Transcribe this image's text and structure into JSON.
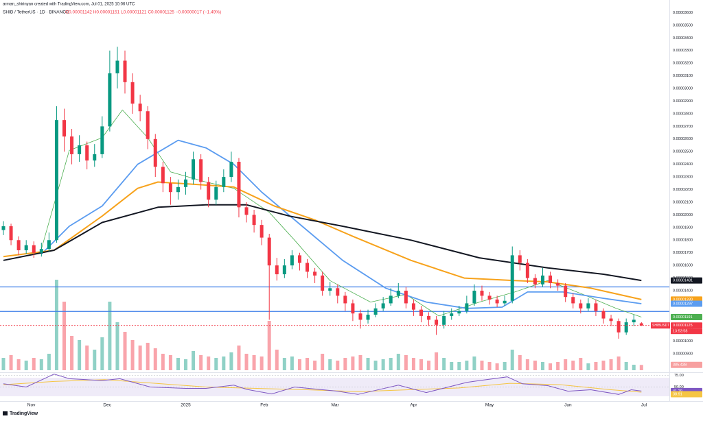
{
  "header": {
    "author_line": "arman_shirinyan created with TradingView.com, Jul 01, 2025 10:06 UTC",
    "symbol_line": "SHIB / TetherUS · 1D · BINANCE",
    "ohlc_line": "O0.00001142 H0.00001151 L0.00001121 C0.00001125 −0.00000017 (−1.49%)"
  },
  "footer": {
    "brand": "TradingView"
  },
  "chart_data": {
    "type": "candlestick",
    "xlim": [
      0,
      253
    ],
    "xticks": [
      {
        "value": 11,
        "label": "Nov"
      },
      {
        "value": 41,
        "label": "Dec"
      },
      {
        "value": 72,
        "label": "2025"
      },
      {
        "value": 103,
        "label": "Feb"
      },
      {
        "value": 131,
        "label": "Mar"
      },
      {
        "value": 162,
        "label": "Apr"
      },
      {
        "value": 192,
        "label": "May"
      },
      {
        "value": 223,
        "label": "Jun"
      },
      {
        "value": 253,
        "label": "Jul"
      }
    ],
    "ylim": [
      7.6e-06,
      3.7e-05
    ],
    "yticks": [
      {
        "value": 9e-06,
        "label": "0.00000900"
      },
      {
        "value": 1e-05,
        "label": "0.00001000"
      },
      {
        "value": 1.1e-05,
        "label": "0.00001100"
      },
      {
        "value": 1.2e-05,
        "label": "0.00001200"
      },
      {
        "value": 1.3e-05,
        "label": "0.00001300"
      },
      {
        "value": 1.4e-05,
        "label": "0.00001400"
      },
      {
        "value": 1.5e-05,
        "label": "0.00001500"
      },
      {
        "value": 1.6e-05,
        "label": "0.00001600"
      },
      {
        "value": 1.7e-05,
        "label": "0.00001700"
      },
      {
        "value": 1.8e-05,
        "label": "0.00001800"
      },
      {
        "value": 1.9e-05,
        "label": "0.00001900"
      },
      {
        "value": 2e-05,
        "label": "0.00002000"
      },
      {
        "value": 2.1e-05,
        "label": "0.00002100"
      },
      {
        "value": 2.2e-05,
        "label": "0.00002200"
      },
      {
        "value": 2.3e-05,
        "label": "0.00002300"
      },
      {
        "value": 2.4e-05,
        "label": "0.00002400"
      },
      {
        "value": 2.5e-05,
        "label": "0.00002500"
      },
      {
        "value": 2.6e-05,
        "label": "0.00002600"
      },
      {
        "value": 2.7e-05,
        "label": "0.00002700"
      },
      {
        "value": 2.8e-05,
        "label": "0.00002800"
      },
      {
        "value": 2.9e-05,
        "label": "0.00002900"
      },
      {
        "value": 3e-05,
        "label": "0.00003000"
      },
      {
        "value": 3.1e-05,
        "label": "0.00003100"
      },
      {
        "value": 3.2e-05,
        "label": "0.00003200"
      },
      {
        "value": 3.3e-05,
        "label": "0.00003300"
      },
      {
        "value": 3.4e-05,
        "label": "0.00003400"
      },
      {
        "value": 3.5e-05,
        "label": "0.00003500"
      },
      {
        "value": 3.6e-05,
        "label": "0.00003600"
      }
    ],
    "grid": false,
    "up_color": "#089981",
    "down_color": "#f23645",
    "x": [
      0,
      3,
      6,
      9,
      12,
      15,
      18,
      21,
      24,
      27,
      30,
      33,
      36,
      39,
      42,
      45,
      48,
      51,
      54,
      57,
      60,
      63,
      66,
      69,
      72,
      75,
      78,
      81,
      84,
      87,
      90,
      93,
      96,
      99,
      102,
      105,
      108,
      111,
      114,
      117,
      120,
      123,
      126,
      129,
      132,
      135,
      138,
      141,
      144,
      147,
      150,
      153,
      156,
      159,
      162,
      165,
      168,
      171,
      174,
      177,
      180,
      183,
      186,
      189,
      192,
      195,
      198,
      201,
      204,
      207,
      210,
      213,
      216,
      219,
      222,
      225,
      228,
      231,
      234,
      237,
      240,
      243,
      246,
      249,
      252
    ],
    "open": [
      1.88e-05,
      1.91e-05,
      1.8e-05,
      1.72e-05,
      1.76e-05,
      1.7e-05,
      1.73e-05,
      1.8e-05,
      2.75e-05,
      2.62e-05,
      2.48e-05,
      2.55e-05,
      2.43e-05,
      2.48e-05,
      2.7e-05,
      3.12e-05,
      3.22e-05,
      3.05e-05,
      2.88e-05,
      2.82e-05,
      2.6e-05,
      2.38e-05,
      2.25e-05,
      2.18e-05,
      2.22e-05,
      2.28e-05,
      2.44e-05,
      2.26e-05,
      2.12e-05,
      2.22e-05,
      2.3e-05,
      2.42e-05,
      2.06e-05,
      2e-05,
      1.92e-05,
      1.82e-05,
      1.6e-05,
      1.53e-05,
      1.6e-05,
      1.68e-05,
      1.62e-05,
      1.55e-05,
      1.52e-05,
      1.4e-05,
      1.42e-05,
      1.36e-05,
      1.3e-05,
      1.22e-05,
      1.17e-05,
      1.21e-05,
      1.26e-05,
      1.3e-05,
      1.36e-05,
      1.4e-05,
      1.3e-05,
      1.25e-05,
      1.2e-05,
      1.17e-05,
      1.13e-05,
      1.2e-05,
      1.22e-05,
      1.24e-05,
      1.3e-05,
      1.4e-05,
      1.36e-05,
      1.33e-05,
      1.3e-05,
      1.32e-05,
      1.68e-05,
      1.62e-05,
      1.5e-05,
      1.45e-05,
      1.52e-05,
      1.46e-05,
      1.44e-05,
      1.35e-05,
      1.3e-05,
      1.26e-05,
      1.3e-05,
      1.24e-05,
      1.18e-05,
      1.16e-05,
      1.07e-05,
      1.15e-05,
      1.142e-05
    ],
    "high": [
      1.95e-05,
      1.93e-05,
      1.83e-05,
      1.8e-05,
      1.79e-05,
      1.78e-05,
      1.86e-05,
      2.86e-05,
      2.84e-05,
      2.68e-05,
      2.63e-05,
      2.58e-05,
      2.56e-05,
      2.78e-05,
      3.3e-05,
      3.33e-05,
      3.3e-05,
      3.12e-05,
      2.95e-05,
      2.86e-05,
      2.64e-05,
      2.42e-05,
      2.3e-05,
      2.28e-05,
      2.34e-05,
      2.5e-05,
      2.48e-05,
      2.3e-05,
      2.27e-05,
      2.36e-05,
      2.5e-05,
      2.45e-05,
      2.1e-05,
      2.04e-05,
      1.96e-05,
      1.85e-05,
      1.66e-05,
      1.65e-05,
      1.72e-05,
      1.7e-05,
      1.65e-05,
      1.58e-05,
      1.55e-05,
      1.47e-05,
      1.45e-05,
      1.39e-05,
      1.33e-05,
      1.25e-05,
      1.25e-05,
      1.3e-05,
      1.35e-05,
      1.42e-05,
      1.46e-05,
      1.43e-05,
      1.33e-05,
      1.28e-05,
      1.23e-05,
      1.2e-05,
      1.24e-05,
      1.26e-05,
      1.28e-05,
      1.36e-05,
      1.45e-05,
      1.44e-05,
      1.39e-05,
      1.36e-05,
      1.36e-05,
      1.75e-05,
      1.72e-05,
      1.65e-05,
      1.53e-05,
      1.58e-05,
      1.55e-05,
      1.49e-05,
      1.46e-05,
      1.38e-05,
      1.33e-05,
      1.34e-05,
      1.33e-05,
      1.26e-05,
      1.21e-05,
      1.18e-05,
      1.18e-05,
      1.21e-05,
      1.151e-05
    ],
    "low": [
      1.84e-05,
      1.76e-05,
      1.68e-05,
      1.69e-05,
      1.66e-05,
      1.67e-05,
      1.71e-05,
      1.78e-05,
      2.5e-05,
      2.4e-05,
      2.42e-05,
      2.36e-05,
      2.38e-05,
      2.45e-05,
      2.66e-05,
      3e-05,
      2.96e-05,
      2.8e-05,
      2.74e-05,
      2.52e-05,
      2.3e-05,
      2.18e-05,
      2.08e-05,
      2.12e-05,
      2.16e-05,
      2.24e-05,
      2.2e-05,
      2.06e-05,
      2.08e-05,
      2.18e-05,
      2.26e-05,
      1.98e-05,
      1.94e-05,
      1.86e-05,
      1.76e-05,
      1.17e-05,
      1.48e-05,
      1.5e-05,
      1.57e-05,
      1.56e-05,
      1.5e-05,
      1.46e-05,
      1.36e-05,
      1.36e-05,
      1.3e-05,
      1.24e-05,
      1.16e-05,
      1.1e-05,
      1.14e-05,
      1.19e-05,
      1.24e-05,
      1.28e-05,
      1.34e-05,
      1.26e-05,
      1.2e-05,
      1.15e-05,
      1.12e-05,
      1.05e-05,
      1.1e-05,
      1.17e-05,
      1.2e-05,
      1.22e-05,
      1.28e-05,
      1.32e-05,
      1.29e-05,
      1.27e-05,
      1.28e-05,
      1.3e-05,
      1.56e-05,
      1.46e-05,
      1.42e-05,
      1.43e-05,
      1.42e-05,
      1.4e-05,
      1.31e-05,
      1.26e-05,
      1.22e-05,
      1.24e-05,
      1.2e-05,
      1.14e-05,
      1.12e-05,
      1.02e-05,
      1.05e-05,
      1.12e-05,
      1.121e-05
    ],
    "close": [
      1.91e-05,
      1.8e-05,
      1.72e-05,
      1.76e-05,
      1.7e-05,
      1.73e-05,
      1.8e-05,
      2.75e-05,
      2.62e-05,
      2.48e-05,
      2.55e-05,
      2.43e-05,
      2.48e-05,
      2.7e-05,
      3.12e-05,
      3.22e-05,
      3.05e-05,
      2.88e-05,
      2.82e-05,
      2.6e-05,
      2.38e-05,
      2.25e-05,
      2.18e-05,
      2.22e-05,
      2.28e-05,
      2.44e-05,
      2.26e-05,
      2.12e-05,
      2.22e-05,
      2.3e-05,
      2.42e-05,
      2.06e-05,
      2e-05,
      1.92e-05,
      1.82e-05,
      1.6e-05,
      1.53e-05,
      1.6e-05,
      1.68e-05,
      1.62e-05,
      1.55e-05,
      1.52e-05,
      1.4e-05,
      1.42e-05,
      1.36e-05,
      1.3e-05,
      1.22e-05,
      1.17e-05,
      1.21e-05,
      1.26e-05,
      1.3e-05,
      1.36e-05,
      1.4e-05,
      1.3e-05,
      1.25e-05,
      1.2e-05,
      1.17e-05,
      1.13e-05,
      1.2e-05,
      1.22e-05,
      1.24e-05,
      1.3e-05,
      1.4e-05,
      1.36e-05,
      1.33e-05,
      1.3e-05,
      1.32e-05,
      1.68e-05,
      1.62e-05,
      1.5e-05,
      1.45e-05,
      1.52e-05,
      1.46e-05,
      1.44e-05,
      1.35e-05,
      1.3e-05,
      1.26e-05,
      1.3e-05,
      1.24e-05,
      1.18e-05,
      1.16e-05,
      1.07e-05,
      1.15e-05,
      1.17e-05,
      1.125e-05
    ],
    "volume_lim": [
      0,
      7000
    ],
    "volume": [
      900,
      1100,
      800,
      700,
      900,
      800,
      1200,
      6600,
      5000,
      2500,
      2200,
      1800,
      1500,
      2400,
      5000,
      3500,
      2800,
      2200,
      1800,
      2000,
      1600,
      1200,
      1100,
      900,
      800,
      1400,
      1100,
      1000,
      900,
      1000,
      1300,
      1800,
      1200,
      1100,
      1000,
      3600,
      1500,
      900,
      1000,
      800,
      900,
      700,
      1200,
      800,
      700,
      900,
      1000,
      1100,
      900,
      700,
      800,
      900,
      1200,
      1100,
      900,
      800,
      700,
      1300,
      900,
      600,
      600,
      700,
      1000,
      700,
      600,
      500,
      600,
      1500,
      1100,
      800,
      700,
      600,
      500,
      600,
      800,
      700,
      900,
      500,
      600,
      700,
      800,
      1000,
      600,
      400,
      385.42
    ],
    "volume_badge": {
      "label": "385.42B",
      "color": "#f7a0a0"
    },
    "ma_lines": [
      {
        "color": "#4caf50",
        "width": 0.8,
        "x": [
          15,
          26,
          39,
          47,
          57,
          66,
          80,
          91,
          105,
          115,
          129,
          145,
          159,
          172,
          188,
          202,
          215,
          229,
          242,
          252
        ],
        "values": [
          1.73e-05,
          2.51e-05,
          2.61e-05,
          2.83e-05,
          2.61e-05,
          2.34e-05,
          2.26e-05,
          2.21e-05,
          2.02e-05,
          1.8e-05,
          1.48e-05,
          1.31e-05,
          1.37e-05,
          1.2e-05,
          1.31e-05,
          1.39e-05,
          1.48e-05,
          1.37e-05,
          1.26e-05,
          1.191e-05
        ]
      },
      {
        "color": "#5b9cf0",
        "width": 1.8,
        "x": [
          15,
          26,
          39,
          53,
          69,
          80,
          91,
          102,
          118,
          134,
          151,
          167,
          183,
          197,
          207,
          221,
          237,
          252
        ],
        "values": [
          1.69e-05,
          1.91e-05,
          2.07e-05,
          2.4e-05,
          2.59e-05,
          2.53e-05,
          2.4e-05,
          2.18e-05,
          1.91e-05,
          1.64e-05,
          1.42e-05,
          1.31e-05,
          1.26e-05,
          1.27e-05,
          1.39e-05,
          1.39e-05,
          1.34e-05,
          1.297e-05
        ]
      },
      {
        "color": "#f7a21b",
        "width": 2,
        "x": [
          0,
          20,
          39,
          53,
          61,
          77,
          91,
          107,
          123,
          138,
          161,
          182,
          202,
          215,
          232,
          252
        ],
        "values": [
          1.67e-05,
          1.72e-05,
          1.99e-05,
          2.21e-05,
          2.26e-05,
          2.24e-05,
          2.22e-05,
          2.07e-05,
          1.96e-05,
          1.83e-05,
          1.64e-05,
          1.5e-05,
          1.48e-05,
          1.47e-05,
          1.42e-05,
          1.33e-05
        ]
      },
      {
        "color": "#131722",
        "width": 2,
        "x": [
          0,
          20,
          39,
          61,
          80,
          96,
          113,
          134,
          161,
          188,
          215,
          237,
          252
        ],
        "values": [
          1.64e-05,
          1.72e-05,
          1.94e-05,
          2.06e-05,
          2.08e-05,
          2.08e-05,
          1.99e-05,
          1.91e-05,
          1.8e-05,
          1.66e-05,
          1.58e-05,
          1.53e-05,
          1.481e-05
        ]
      }
    ],
    "levels": [
      {
        "value": 1.43e-05,
        "color": "#3d7ee8"
      },
      {
        "value": 1.236e-05,
        "color": "#3d7ee8"
      }
    ],
    "badges": [
      {
        "value": 1.481e-05,
        "label": "0.00001481",
        "color": "#131722"
      },
      {
        "value": 1.33e-05,
        "label": "0.00001330",
        "color": "#f7a21b"
      },
      {
        "value": 1.297e-05,
        "label": "0.00001297",
        "color": "#5b9cf0"
      },
      {
        "value": 1.191e-05,
        "label": "0.00001191",
        "color": "#4caf50"
      }
    ],
    "last_price": {
      "value": 1.125e-05,
      "label": "0.00001125",
      "symbol": "SHIBUSDT",
      "countdown": "13:53:58",
      "color": "#f23645"
    },
    "rsi": {
      "ylim": [
        24,
        79
      ],
      "yticks": [
        {
          "value": 75,
          "label": "75.00"
        },
        {
          "value": 50,
          "label": "50.00"
        }
      ],
      "band": [
        30,
        70
      ],
      "line": {
        "color": "#7e57c2",
        "x": [
          0,
          9,
          20,
          26,
          39,
          46,
          58,
          72,
          80,
          91,
          96,
          106,
          115,
          132,
          140,
          156,
          167,
          183,
          188,
          199,
          205,
          215,
          223,
          232,
          243,
          248,
          252
        ],
        "values": [
          57,
          50,
          78,
          68,
          64,
          68,
          50,
          47,
          47,
          54,
          45,
          35,
          50,
          41,
          34,
          54,
          38,
          60,
          64,
          72,
          57,
          53,
          41,
          44,
          34,
          44,
          41.29
        ]
      },
      "ma": {
        "color": "#f5c542",
        "x": [
          0,
          20,
          40,
          60,
          80,
          100,
          120,
          140,
          160,
          180,
          200,
          220,
          240,
          252
        ],
        "values": [
          55,
          62,
          66,
          58,
          50,
          47,
          44,
          40,
          44,
          48,
          58,
          55,
          44,
          38.91
        ]
      }
    }
  }
}
